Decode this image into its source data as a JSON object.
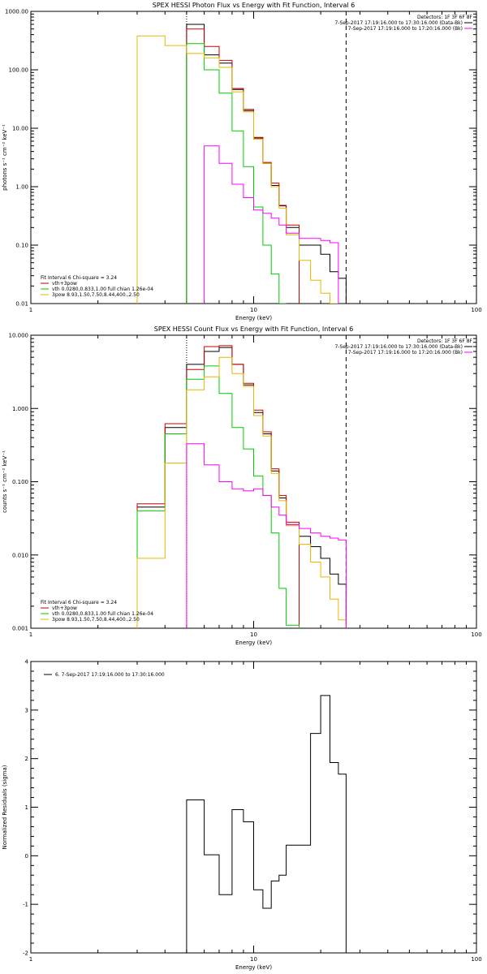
{
  "chart_data": [
    {
      "type": "line",
      "title": "SPEX HESSI Photon Flux vs Energy with Fit Function, Interval 6",
      "xlabel": "Energy (keV)",
      "ylabel": "photons s⁻¹ cm⁻² keV⁻¹",
      "x_scale": "log",
      "y_scale": "log",
      "xlim": [
        1,
        100
      ],
      "ylim": [
        0.01,
        1000
      ],
      "x_ticks": [
        "1",
        "10",
        "100"
      ],
      "y_ticks": [
        "0.01",
        "0.10",
        "1.00",
        "10.00",
        "100.00",
        "1000.00"
      ],
      "legend_right": {
        "detectors": "Detectors: 1F 3F 6F 8F",
        "entries": [
          {
            "text": "7-Sep-2017 17:19:16.000 to 17:30:16.000 (Data-Bk)",
            "color": "#000000"
          },
          {
            "text": "7-Sep-2017 17:19:16.000 to 17:20:16.000 (Bk)",
            "color": "#ff00ff"
          }
        ]
      },
      "legend_left": {
        "header": "Fit Interval 6   Chi-square = 3.24",
        "entries": [
          {
            "text": "vth+3pow",
            "color": "#cc0000"
          },
          {
            "text": "vth 0.0280,0.833,1.00  full chian 1.26e-04",
            "color": "#00cc00"
          },
          {
            "text": "3pow 8.93,1.50,7.50,8.44,400.,2.50",
            "color": "#e6b800"
          }
        ]
      },
      "vlines": [
        {
          "x": 5.0,
          "style": "dotted"
        },
        {
          "x": 26.0,
          "style": "dashed"
        }
      ],
      "edges": [
        3,
        4,
        5,
        6,
        7,
        8,
        9,
        10,
        11,
        12,
        13,
        14,
        16,
        18,
        20,
        22,
        24,
        26
      ],
      "series": [
        {
          "color": "#000000",
          "values": [
            null,
            null,
            600,
            180,
            130,
            46,
            20,
            6.8,
            2.5,
            1.05,
            0.47,
            0.2,
            0.1,
            0.1,
            0.07,
            0.035,
            0.027
          ]
        },
        {
          "color": "#cc0000",
          "values": [
            null,
            null,
            500,
            250,
            145,
            48,
            21,
            7.0,
            2.6,
            1.15,
            0.48,
            0.22,
            null,
            null,
            null,
            null,
            null
          ]
        },
        {
          "color": "#00cc00",
          "values": [
            null,
            null,
            280,
            100,
            40,
            9,
            2.2,
            0.45,
            0.1,
            0.032,
            0.01,
            null,
            null,
            null,
            null,
            null,
            null
          ]
        },
        {
          "color": "#e6b800",
          "values": [
            380,
            260,
            190,
            160,
            110,
            42,
            19,
            6.5,
            2.5,
            1.0,
            0.43,
            0.15,
            0.055,
            0.025,
            0.015,
            0.01,
            null
          ]
        },
        {
          "color": "#ff00ff",
          "values": [
            null,
            null,
            null,
            5,
            2.5,
            1.1,
            0.65,
            0.4,
            0.35,
            0.29,
            0.22,
            0.16,
            0.13,
            0.13,
            0.12,
            0.11,
            null
          ]
        }
      ]
    },
    {
      "type": "line",
      "title": "SPEX HESSI Count Flux vs Energy with Fit Function, Interval 6",
      "xlabel": "Energy (keV)",
      "ylabel": "counts s⁻¹ cm⁻² keV⁻¹",
      "x_scale": "log",
      "y_scale": "log",
      "xlim": [
        1,
        100
      ],
      "ylim": [
        0.001,
        10
      ],
      "x_ticks": [
        "1",
        "10",
        "100"
      ],
      "y_ticks": [
        "0.001",
        "0.010",
        "0.100",
        "1.000",
        "10.000"
      ],
      "legend_right": {
        "detectors": "Detectors: 1F 3F 6F 8F",
        "entries": [
          {
            "text": "7-Sep-2017 17:19:16.000 to 17:30:16.000 (Data-Bk)",
            "color": "#000000"
          },
          {
            "text": "7-Sep-2017 17:19:16.000 to 17:20:16.000 (Bk)",
            "color": "#ff00ff"
          }
        ]
      },
      "legend_left": {
        "header": "Fit Interval 6   Chi-square = 3.24",
        "entries": [
          {
            "text": "vth+3pow",
            "color": "#cc0000"
          },
          {
            "text": "vth 0.0280,0.833,1.00  full chian 1.26e-04",
            "color": "#00cc00"
          },
          {
            "text": "3pow 8.93,1.50,7.50,8.44,400.,2.50",
            "color": "#e6b800"
          }
        ]
      },
      "vlines": [
        {
          "x": 5.0,
          "style": "dotted"
        },
        {
          "x": 26.0,
          "style": "dashed"
        }
      ],
      "edges": [
        3,
        4,
        5,
        6,
        7,
        8,
        9,
        10,
        11,
        12,
        13,
        14,
        16,
        18,
        20,
        22,
        24,
        26
      ],
      "series": [
        {
          "color": "#000000",
          "values": [
            0.045,
            0.55,
            4.0,
            6.0,
            6.8,
            4.0,
            2.1,
            0.88,
            0.45,
            0.14,
            0.06,
            0.026,
            0.018,
            0.013,
            0.009,
            0.0055,
            0.004
          ]
        },
        {
          "color": "#cc0000",
          "values": [
            0.05,
            0.62,
            3.4,
            7.0,
            7.2,
            4.0,
            2.2,
            0.95,
            0.48,
            0.15,
            0.065,
            0.028,
            null,
            null,
            null,
            null,
            null
          ]
        },
        {
          "color": "#00cc00",
          "values": [
            0.04,
            0.45,
            2.5,
            3.8,
            1.6,
            0.55,
            0.28,
            0.12,
            0.065,
            0.02,
            0.0035,
            0.0011,
            null,
            null,
            null,
            null,
            null
          ]
        },
        {
          "color": "#e6b800",
          "values": [
            0.009,
            0.18,
            1.8,
            2.7,
            5.0,
            3.0,
            2.0,
            0.8,
            0.42,
            0.13,
            0.055,
            0.025,
            0.014,
            0.008,
            0.005,
            0.0025,
            0.0013
          ]
        },
        {
          "color": "#ff00ff",
          "values": [
            null,
            null,
            0.33,
            0.17,
            0.1,
            0.08,
            0.075,
            0.08,
            0.065,
            0.045,
            0.035,
            0.026,
            0.023,
            0.02,
            0.018,
            0.017,
            0.016
          ]
        }
      ]
    },
    {
      "type": "line",
      "title": "",
      "xlabel": "Energy (keV)",
      "ylabel": "Normalized Residuals (sigma)",
      "x_scale": "log",
      "y_scale": "linear",
      "xlim": [
        1,
        100
      ],
      "ylim": [
        -2,
        4
      ],
      "x_ticks": [
        "1",
        "10",
        "100"
      ],
      "y_ticks": [
        "-2",
        "-1",
        "0",
        "1",
        "2",
        "3",
        "4"
      ],
      "legend_left": {
        "entries": [
          {
            "text": "6.  7-Sep-2017 17:19:16.000 to 17:30:16.000",
            "color": "#000000"
          }
        ]
      },
      "edges": [
        5,
        6,
        7,
        8,
        9,
        10,
        11,
        12,
        13,
        14,
        16,
        18,
        20,
        22,
        24,
        26
      ],
      "series": [
        {
          "color": "#000000",
          "values": [
            1.15,
            0.02,
            -0.8,
            0.95,
            0.7,
            -0.7,
            -1.08,
            -0.52,
            -0.4,
            0.22,
            0.22,
            2.52,
            3.3,
            1.92,
            1.68
          ]
        }
      ]
    }
  ]
}
